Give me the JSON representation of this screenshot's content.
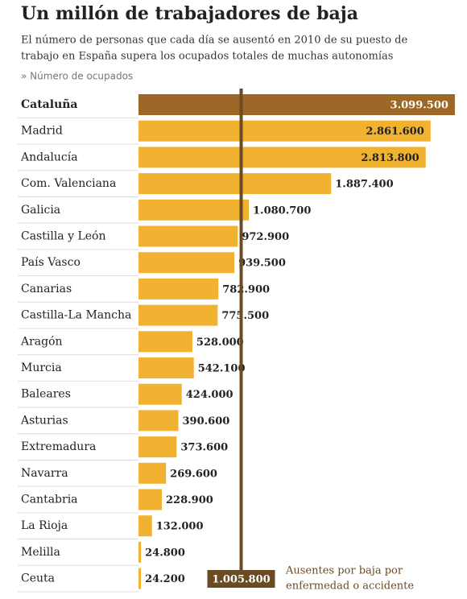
{
  "chart_data": {
    "type": "barh",
    "title": "Un millón de trabajadores de baja",
    "subtitle": [
      "El número de personas que cada día se ausentó en 2010 de su puesto de",
      "trabajo en España supera los ocupados totales de muchas autonomías"
    ],
    "series_label": "» Número de ocupados",
    "categories": [
      "Cataluña",
      "Madrid",
      "Andalucía",
      "Com. Valenciana",
      "Galicia",
      "Castilla y León",
      "País Vasco",
      "Canarias",
      "Castilla-La Mancha",
      "Aragón",
      "Murcia",
      "Baleares",
      "Asturias",
      "Extremadura",
      "Navarra",
      "Cantabria",
      "La Rioja",
      "Melilla",
      "Ceuta"
    ],
    "values": [
      3099500,
      2861600,
      2813800,
      1887400,
      1080700,
      972900,
      939500,
      782900,
      775500,
      528000,
      542100,
      424000,
      390600,
      373600,
      269600,
      228900,
      132000,
      24800,
      24200
    ],
    "value_labels": [
      "3.099.500",
      "2.861.600",
      "2.813.800",
      "1.887.400",
      "1.080.700",
      "972.900",
      "939.500",
      "782.900",
      "775.500",
      "528.000",
      "542.100",
      "424.000",
      "390.600",
      "373.600",
      "269.600",
      "228.900",
      "132.000",
      "24.800",
      "24.200"
    ],
    "colors": [
      "#9c6727",
      "#f1b232",
      "#f1b232",
      "#f1b232",
      "#f1b232",
      "#f1b232",
      "#f1b232",
      "#f1b232",
      "#f1b232",
      "#f1b232",
      "#f1b232",
      "#f1b232",
      "#f1b232",
      "#f1b232",
      "#f1b232",
      "#f1b232",
      "#f1b232",
      "#f1b232",
      "#f1b232"
    ],
    "xlim": [
      0,
      3100000
    ],
    "reference_line": {
      "value": 1005800,
      "label": "1.005.800",
      "color": "#6b4b22",
      "annotation": [
        "Ausentes por baja por",
        "enfermedad o accidente"
      ]
    }
  }
}
